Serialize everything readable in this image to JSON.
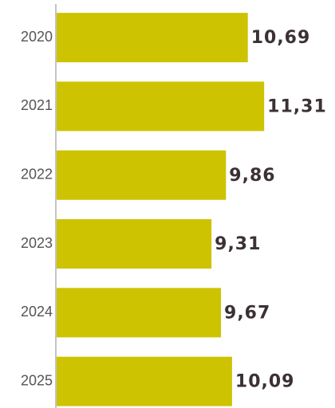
{
  "chart_data": {
    "type": "barh",
    "categories": [
      "2020",
      "2021",
      "2022",
      "2023",
      "2024",
      "2025"
    ],
    "values": [
      10.69,
      11.31,
      9.86,
      9.31,
      9.67,
      10.09
    ],
    "value_labels": [
      "10,69",
      "11,31",
      "9,86",
      "9,31",
      "9,67",
      "10,09"
    ],
    "color": "#cdc300",
    "xlim": [
      3.4,
      14
    ]
  }
}
